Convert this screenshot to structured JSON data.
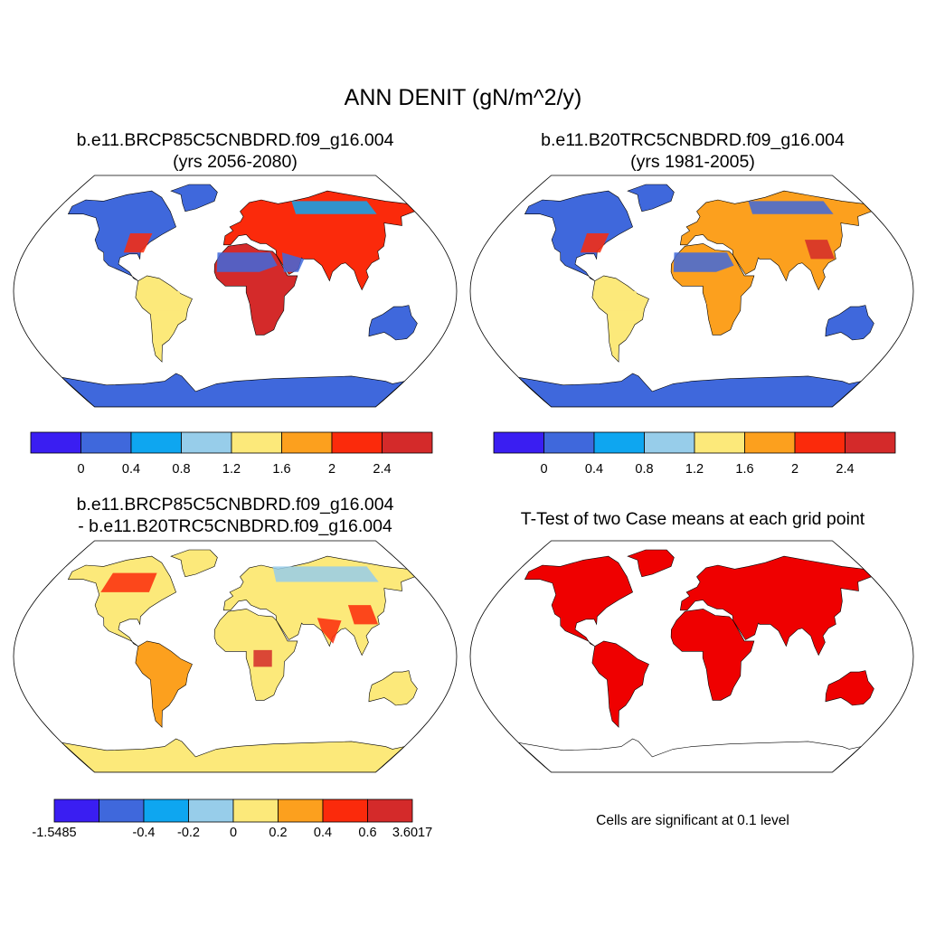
{
  "title": "ANN DENIT (gN/m^2/y)",
  "palette": [
    "#3a1ef2",
    "#3f68dc",
    "#0ea6f0",
    "#97cdea",
    "#fce97a",
    "#fca01e",
    "#fb2a0b",
    "#d42a2a"
  ],
  "sig_color": "#ef0000",
  "panels": [
    {
      "id": "case",
      "title_lines": [
        "b.e11.BRCP85C5CNBDRD.f09_g16.004",
        "(yrs 2056-2080)"
      ],
      "colorbar_labels": [
        "0",
        "0.4",
        "0.8",
        "1.2",
        "1.6",
        "2",
        "2.4"
      ],
      "colorbar_levels": [
        -0.4,
        0,
        0.4,
        0.8,
        1.2,
        1.6,
        2,
        2.4,
        2.8
      ]
    },
    {
      "id": "control",
      "title_lines": [
        "b.e11.B20TRC5CNBDRD.f09_g16.004",
        "(yrs 1981-2005)"
      ],
      "colorbar_labels": [
        "0",
        "0.4",
        "0.8",
        "1.2",
        "1.6",
        "2",
        "2.4"
      ],
      "colorbar_levels": [
        -0.4,
        0,
        0.4,
        0.8,
        1.2,
        1.6,
        2,
        2.4,
        2.8
      ]
    },
    {
      "id": "difference",
      "title_lines": [
        "b.e11.BRCP85C5CNBDRD.f09_g16.004",
        "- b.e11.B20TRC5CNBDRD.f09_g16.004"
      ],
      "colorbar_labels": [
        "-1.5485",
        "-0.4",
        "-0.2",
        "0",
        "0.2",
        "0.4",
        "0.6",
        "3.6017"
      ],
      "colorbar_levels": [
        -1.5485,
        -0.6,
        -0.4,
        -0.2,
        0,
        0.2,
        0.4,
        0.6,
        3.6017
      ]
    },
    {
      "id": "ttest",
      "title_lines": [
        "T-Test of two Case means at each grid point"
      ],
      "note": "Cells are significant at 0.1 level"
    }
  ]
}
